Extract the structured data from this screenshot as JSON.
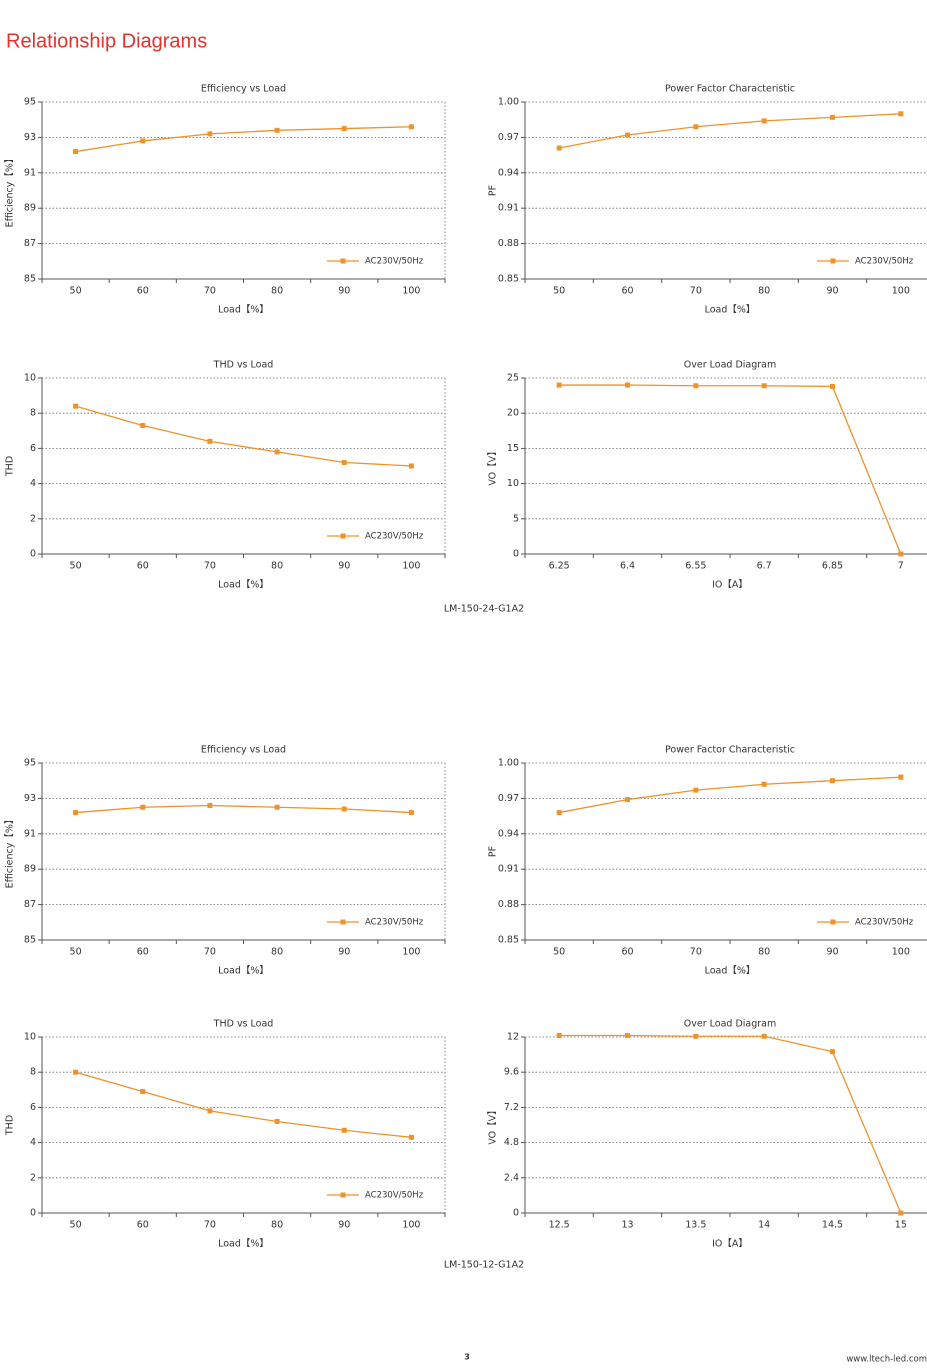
{
  "header": {
    "title": "Relationship Diagrams"
  },
  "chart_data": [
    {
      "type": "line",
      "title": "Efficiency vs Load",
      "x_label": "Load【%】",
      "y_label": "Efficiency【%】",
      "categories": [
        "50",
        "60",
        "70",
        "80",
        "90",
        "100"
      ],
      "series": [
        {
          "name": "AC230V/50Hz",
          "color": "#f0922a",
          "values": [
            92.2,
            92.8,
            93.2,
            93.4,
            93.5,
            93.6
          ]
        }
      ],
      "ylim": [
        85,
        95
      ],
      "yticks": [
        85,
        87,
        89,
        91,
        93,
        95
      ],
      "grid": true,
      "legend": "lower right"
    },
    {
      "type": "line",
      "title": "Power Factor Characteristic",
      "x_label": "Load【%】",
      "y_label": "PF",
      "categories": [
        "50",
        "60",
        "70",
        "80",
        "90",
        "100"
      ],
      "series": [
        {
          "name": "AC230V/50Hz",
          "color": "#f0922a",
          "values": [
            0.961,
            0.972,
            0.979,
            0.984,
            0.987,
            0.99
          ]
        }
      ],
      "ylim": [
        0.85,
        1
      ],
      "yticks": [
        0.85,
        0.88,
        0.91,
        0.94,
        0.97,
        {
          "value": 1,
          "label": "1.00"
        }
      ],
      "grid": true,
      "legend": "lower right"
    },
    {
      "type": "line",
      "title": "THD vs Load",
      "x_label": "Load【%】",
      "y_label": "THD",
      "categories": [
        "50",
        "60",
        "70",
        "80",
        "90",
        "100"
      ],
      "series": [
        {
          "name": "AC230V/50Hz",
          "color": "#f0922a",
          "values": [
            8.4,
            7.3,
            6.4,
            5.8,
            5.2,
            5.0
          ]
        }
      ],
      "ylim": [
        0,
        10
      ],
      "yticks": [
        0,
        2,
        4,
        6,
        8,
        10
      ],
      "grid": true,
      "legend": "lower right"
    },
    {
      "type": "line",
      "title": "Over Load Diagram",
      "x_label": "IO【A】",
      "y_label": "VO【V】",
      "categories": [
        "6.25",
        "6.4",
        "6.55",
        "6.7",
        "6.85",
        "7"
      ],
      "color": "#f0922a",
      "values": [
        24.0,
        24.0,
        23.9,
        23.9,
        23.8,
        0
      ],
      "ylim": [
        0,
        25
      ],
      "yticks": [
        0,
        5,
        10,
        15,
        20,
        25
      ],
      "grid": true
    },
    {
      "type": "line",
      "title": "Efficiency vs Load",
      "x_label": "Load【%】",
      "y_label": "Efficiency【%】",
      "categories": [
        "50",
        "60",
        "70",
        "80",
        "90",
        "100"
      ],
      "series": [
        {
          "name": "AC230V/50Hz",
          "color": "#f0922a",
          "values": [
            92.2,
            92.5,
            92.6,
            92.5,
            92.4,
            92.2
          ]
        }
      ],
      "ylim": [
        85,
        95
      ],
      "yticks": [
        85,
        87,
        89,
        91,
        93,
        95
      ],
      "grid": true,
      "legend": "lower right"
    },
    {
      "type": "line",
      "title": "Power Factor Characteristic",
      "x_label": "Load【%】",
      "y_label": "PF",
      "categories": [
        "50",
        "60",
        "70",
        "80",
        "90",
        "100"
      ],
      "series": [
        {
          "name": "AC230V/50Hz",
          "color": "#f0922a",
          "values": [
            0.958,
            0.969,
            0.977,
            0.982,
            0.985,
            0.988
          ]
        }
      ],
      "ylim": [
        0.85,
        1
      ],
      "yticks": [
        0.85,
        0.88,
        0.91,
        0.94,
        0.97,
        {
          "value": 1,
          "label": "1.00"
        }
      ],
      "grid": true,
      "legend": "lower right"
    },
    {
      "type": "line",
      "title": "THD vs Load",
      "x_label": "Load【%】",
      "y_label": "THD",
      "categories": [
        "50",
        "60",
        "70",
        "80",
        "90",
        "100"
      ],
      "series": [
        {
          "name": "AC230V/50Hz",
          "color": "#f0922a",
          "values": [
            8.0,
            6.9,
            5.8,
            5.2,
            4.7,
            4.3
          ]
        }
      ],
      "ylim": [
        0,
        10
      ],
      "yticks": [
        0,
        2,
        4,
        6,
        8,
        10
      ],
      "grid": true,
      "legend": "lower right"
    },
    {
      "type": "line",
      "title": "Over Load Diagram",
      "x_label": "IO【A】",
      "y_label": "VO【V】",
      "categories": [
        "12.5",
        "13",
        "13.5",
        "14",
        "14.5",
        "15"
      ],
      "color": "#f0922a",
      "values": [
        12.1,
        12.1,
        12.05,
        12.05,
        11.0,
        0
      ],
      "ylim": [
        0,
        12
      ],
      "yticks": [
        0,
        2.4,
        4.8,
        7.2,
        9.6,
        12
      ],
      "grid": true
    }
  ],
  "captions": [
    "LM-150-24-G1A2",
    "LM-150-12-G1A2"
  ],
  "footer": {
    "page": "3",
    "url": "www.ltech-led.com"
  }
}
